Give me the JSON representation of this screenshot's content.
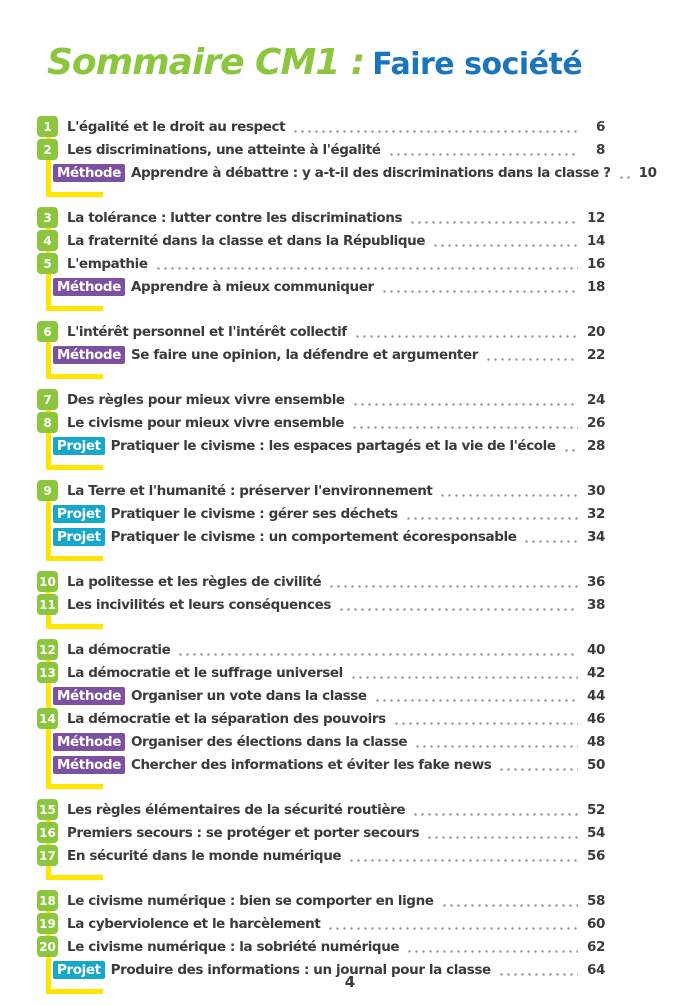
{
  "header": {
    "title_green": "Sommaire CM1 :",
    "title_blue": "Faire société"
  },
  "footer": {
    "page_number": "4"
  },
  "tags": {
    "methode": "Méthode",
    "projet": "Projet"
  },
  "colors": {
    "green": "#8cc63f",
    "blue": "#1b75bc",
    "yellow": "#ffe500",
    "purple": "#7c51a1",
    "cyan": "#16a8cc",
    "text": "#3b3b3a",
    "dots": "#9b9b9b"
  },
  "toc": {
    "groups": [
      {
        "items": [
          {
            "type": "chapter",
            "number": "1",
            "label": "L'égalité et le droit au respect",
            "page": "6"
          },
          {
            "type": "chapter",
            "number": "2",
            "label": "Les discriminations, une atteinte à l'égalité",
            "page": "8"
          },
          {
            "type": "methode",
            "label": "Apprendre à débattre : y a-t-il des discriminations dans la classe ?",
            "page": "10"
          }
        ]
      },
      {
        "items": [
          {
            "type": "chapter",
            "number": "3",
            "label": "La tolérance : lutter contre les discriminations",
            "page": "12"
          },
          {
            "type": "chapter",
            "number": "4",
            "label": "La fraternité dans la classe et dans la République",
            "page": "14"
          },
          {
            "type": "chapter",
            "number": "5",
            "label": "L'empathie",
            "page": "16"
          },
          {
            "type": "methode",
            "label": "Apprendre à mieux communiquer",
            "page": "18"
          }
        ]
      },
      {
        "items": [
          {
            "type": "chapter",
            "number": "6",
            "label": "L'intérêt personnel et l'intérêt collectif",
            "page": "20"
          },
          {
            "type": "methode",
            "label": "Se faire une opinion, la défendre et argumenter",
            "page": "22"
          }
        ]
      },
      {
        "items": [
          {
            "type": "chapter",
            "number": "7",
            "label": "Des règles pour mieux vivre ensemble",
            "page": "24"
          },
          {
            "type": "chapter",
            "number": "8",
            "label": "Le civisme pour mieux vivre ensemble",
            "page": "26"
          },
          {
            "type": "projet",
            "label": "Pratiquer le civisme : les espaces partagés et la vie de l'école",
            "page": "28"
          }
        ]
      },
      {
        "items": [
          {
            "type": "chapter",
            "number": "9",
            "label": "La Terre et l'humanité : préserver l'environnement",
            "page": "30"
          },
          {
            "type": "projet",
            "label": "Pratiquer le civisme : gérer ses déchets",
            "page": "32"
          },
          {
            "type": "projet",
            "label": "Pratiquer le civisme : un comportement écoresponsable",
            "page": "34"
          }
        ]
      },
      {
        "items": [
          {
            "type": "chapter",
            "number": "10",
            "label": "La politesse et les règles de civilité",
            "page": "36"
          },
          {
            "type": "chapter",
            "number": "11",
            "label": "Les incivilités et leurs conséquences",
            "page": "38"
          }
        ]
      },
      {
        "items": [
          {
            "type": "chapter",
            "number": "12",
            "label": "La démocratie",
            "page": "40"
          },
          {
            "type": "chapter",
            "number": "13",
            "label": "La démocratie et le suffrage universel",
            "page": "42"
          },
          {
            "type": "methode",
            "label": "Organiser un vote dans la classe",
            "page": "44"
          },
          {
            "type": "chapter",
            "number": "14",
            "label": "La démocratie et la séparation des pouvoirs",
            "page": "46"
          },
          {
            "type": "methode",
            "label": "Organiser des élections dans la classe",
            "page": "48"
          },
          {
            "type": "methode",
            "label": "Chercher des informations et éviter les fake news",
            "page": "50"
          }
        ]
      },
      {
        "items": [
          {
            "type": "chapter",
            "number": "15",
            "label": "Les règles élémentaires de la sécurité routière",
            "page": "52"
          },
          {
            "type": "chapter",
            "number": "16",
            "label": "Premiers secours : se protéger et porter secours",
            "page": "54"
          },
          {
            "type": "chapter",
            "number": "17",
            "label": "En sécurité dans le monde numérique",
            "page": "56"
          }
        ]
      },
      {
        "items": [
          {
            "type": "chapter",
            "number": "18",
            "label": "Le civisme numérique : bien se comporter en ligne",
            "page": "58"
          },
          {
            "type": "chapter",
            "number": "19",
            "label": "La cyberviolence et le harcèlement",
            "page": "60"
          },
          {
            "type": "chapter",
            "number": "20",
            "label": "Le civisme numérique : la sobriété numérique",
            "page": "62"
          },
          {
            "type": "projet",
            "label": "Produire des informations : un journal pour la classe",
            "page": "64"
          }
        ]
      }
    ]
  }
}
